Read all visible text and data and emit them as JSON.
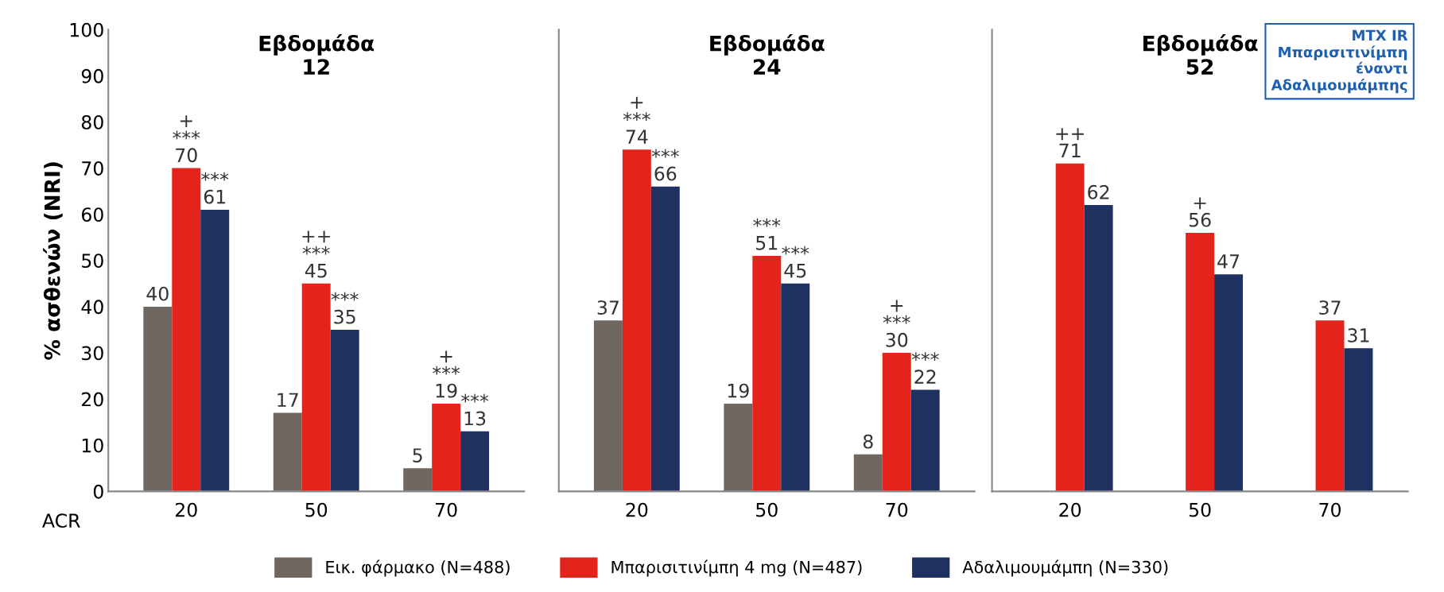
{
  "chart_data": [
    {
      "type": "bar",
      "title": "Εβδομάδα\n12",
      "xlabel": "ACR",
      "ylabel": "% ασθενών (NRI)",
      "categories": [
        "20",
        "50",
        "70"
      ],
      "ylim": [
        0,
        100
      ],
      "yticks": [
        0,
        10,
        20,
        30,
        40,
        50,
        60,
        70,
        80,
        90,
        100
      ],
      "legend": "bottom",
      "tick_labels": "xy",
      "series": [
        {
          "name": "Εικ. φάρμακο (N=488)",
          "color": "#706860",
          "values": [
            40,
            17,
            5
          ],
          "value_labels": [
            "40",
            "17",
            "5"
          ]
        },
        {
          "name": "Μπαρισιτινίμπη 4 mg (N=487)",
          "color": "#e3231c",
          "values": [
            70,
            45,
            19
          ],
          "value_labels": [
            "+\n***\n70",
            "++\n***\n45",
            "+\n***\n19"
          ]
        },
        {
          "name": "Αδαλιμουμάμπη (N=330)",
          "color": "#1f3160",
          "values": [
            61,
            35,
            13
          ],
          "value_labels": [
            "***\n61",
            "***\n35",
            "***\n13"
          ]
        }
      ]
    },
    {
      "type": "bar",
      "title": "Εβδομάδα\n24",
      "categories": [
        "20",
        "50",
        "70"
      ],
      "ylim": [
        0,
        100
      ],
      "tick_labels": "x",
      "series": [
        {
          "color": "#706860",
          "values": [
            37,
            19,
            8
          ],
          "value_labels": [
            "37",
            "19",
            "8"
          ]
        },
        {
          "color": "#e3231c",
          "values": [
            74,
            51,
            30
          ],
          "value_labels": [
            "+\n***\n74",
            "***\n51",
            "+\n***\n30"
          ]
        },
        {
          "color": "#1f3160",
          "values": [
            66,
            45,
            22
          ],
          "value_labels": [
            "***\n66",
            "***\n45",
            "***\n22"
          ]
        }
      ]
    },
    {
      "type": "bar",
      "title": "Εβδομάδα\n52",
      "categories": [
        "20",
        "50",
        "70"
      ],
      "ylim": [
        0,
        100
      ],
      "tick_labels": "x",
      "annotations": [
        "MTX IR\nΜπαρισιτινίμπη\nέναντι\nΑδαλιμουμάμπης"
      ],
      "series": [
        {
          "values": [
            null,
            null,
            null
          ]
        },
        {
          "color": "#e3231c",
          "values": [
            71,
            56,
            37
          ],
          "value_labels": [
            "++\n71",
            "+\n56",
            "37"
          ]
        },
        {
          "color": "#1f3160",
          "values": [
            62,
            47,
            31
          ],
          "value_labels": [
            "62",
            "47",
            "31"
          ]
        }
      ]
    }
  ]
}
